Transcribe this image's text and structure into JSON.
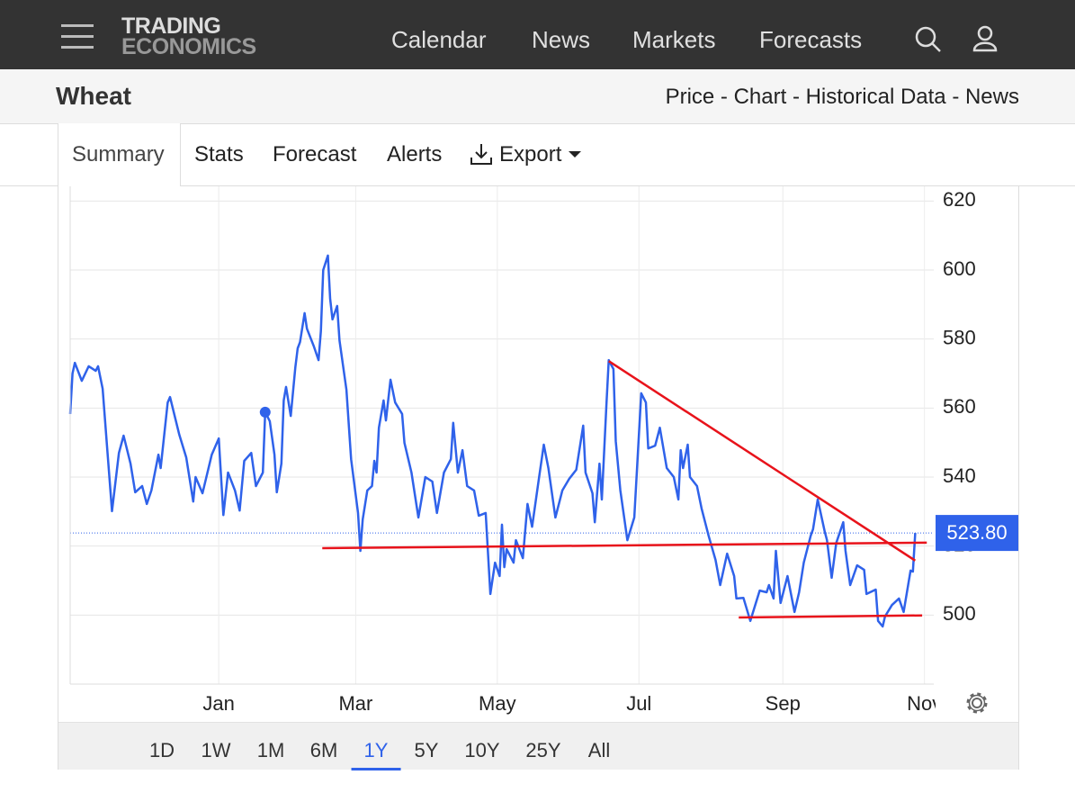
{
  "nav": {
    "logo_line1": "TRADING",
    "logo_line2": "ECONOMICS",
    "items": [
      "Calendar",
      "News",
      "Markets",
      "Forecasts"
    ]
  },
  "header": {
    "title": "Wheat",
    "links": "Price - Chart - Historical Data - News"
  },
  "tabs": [
    "Summary",
    "Stats",
    "Forecast",
    "Alerts",
    "Export"
  ],
  "chart_data": {
    "type": "line",
    "color": "#2f62ea",
    "x": [
      -64,
      -63,
      -62,
      -59,
      -56,
      -53,
      -52,
      -50,
      -48,
      -46,
      -43,
      -41,
      -38,
      -36,
      -33,
      -31,
      -29,
      -26,
      -25,
      -22,
      -21,
      -17,
      -14,
      -11,
      -10,
      -7,
      -3,
      0,
      2,
      4,
      7,
      9,
      11,
      14,
      16,
      19,
      20,
      22,
      24,
      25,
      27,
      28,
      29,
      31,
      33,
      34,
      35,
      37,
      38,
      41,
      43,
      44,
      45,
      47,
      48,
      49,
      51,
      52,
      55,
      57,
      60,
      61,
      62,
      64,
      66,
      67,
      68,
      69,
      71,
      72,
      74,
      76,
      79,
      80,
      83,
      86,
      89,
      92,
      94,
      97,
      100,
      101,
      103,
      105,
      107,
      110,
      112,
      115,
      117,
      119,
      121,
      122,
      123,
      124,
      127,
      128,
      131,
      133,
      135,
      138,
      140,
      142,
      145,
      148,
      151,
      154,
      157,
      158,
      161,
      162,
      164,
      165,
      167,
      168,
      170,
      171,
      173,
      176,
      179,
      182,
      184,
      185,
      188,
      190,
      193,
      196,
      198,
      199,
      200,
      202,
      203,
      206,
      208,
      211,
      214,
      216,
      219,
      222,
      223,
      226,
      229,
      233,
      236,
      237,
      239,
      240,
      242,
      245,
      248,
      250,
      252,
      255,
      256,
      258,
      261,
      262,
      264,
      266,
      269,
      270,
      272,
      275,
      278,
      279,
      283,
      284,
      286,
      287,
      290,
      293,
      295,
      298,
      299,
      300
    ],
    "values": [
      558.3,
      570.0,
      573.1,
      567.9,
      572.1,
      570.8,
      572.1,
      565.6,
      547.8,
      530.1,
      547.0,
      552.0,
      543.9,
      535.6,
      537.4,
      532.2,
      536.1,
      546.5,
      542.6,
      561.6,
      563.2,
      552.3,
      545.7,
      532.9,
      540.0,
      535.3,
      546.5,
      551.2,
      529.0,
      541.3,
      536.1,
      530.3,
      544.7,
      547.0,
      537.4,
      541.3,
      558.8,
      556.2,
      546.5,
      535.6,
      543.9,
      562.2,
      566.1,
      557.7,
      571.8,
      577.3,
      579.1,
      587.5,
      583.0,
      577.8,
      573.9,
      582.3,
      600.0,
      604.2,
      591.7,
      585.7,
      589.6,
      579.6,
      565.3,
      545.2,
      529.6,
      518.6,
      527.7,
      536.1,
      537.4,
      544.7,
      541.3,
      554.3,
      562.2,
      556.4,
      568.2,
      561.6,
      558.3,
      549.9,
      541.3,
      528.3,
      540.0,
      538.7,
      529.6,
      541.3,
      545.2,
      555.7,
      541.3,
      547.8,
      537.4,
      536.1,
      528.8,
      529.6,
      506.1,
      515.2,
      511.3,
      526.2,
      513.9,
      519.1,
      515.2,
      521.7,
      516.5,
      532.2,
      525.6,
      540.0,
      549.4,
      542.6,
      528.3,
      536.1,
      539.5,
      542.1,
      554.9,
      541.3,
      535.3,
      526.9,
      543.9,
      533.5,
      560.9,
      573.9,
      571.3,
      550.4,
      536.1,
      521.7,
      528.3,
      564.3,
      561.6,
      548.3,
      549.1,
      554.3,
      542.6,
      540.0,
      533.5,
      547.8,
      542.6,
      549.4,
      540.0,
      537.4,
      530.9,
      523.0,
      516.0,
      508.7,
      517.8,
      511.3,
      504.8,
      505.0,
      498.3,
      507.1,
      506.6,
      508.7,
      504.8,
      518.6,
      503.5,
      511.3,
      500.9,
      506.6,
      515.2,
      523.0,
      524.9,
      533.5,
      524.3,
      521.7,
      510.8,
      520.9,
      526.9,
      518.6,
      508.7,
      514.4,
      513.1,
      506.1,
      507.4,
      498.3,
      496.7,
      499.6,
      502.9,
      504.8,
      500.9,
      512.9,
      512.6,
      523.8
    ],
    "last_price": 523.8,
    "last_price_label": "523.80",
    "marker": {
      "x": 20,
      "y": 558.8
    },
    "trendlines": [
      {
        "x": [
          44.6,
          305
        ],
        "y": [
          519.4,
          521.0
        ],
        "color": "#e8131b"
      },
      {
        "x": [
          168,
          300
        ],
        "y": [
          573.6,
          515.8
        ],
        "color": "#e8131b"
      },
      {
        "x": [
          224,
          303
        ],
        "y": [
          499.3,
          499.9
        ],
        "color": "#e8131b"
      }
    ],
    "xlim": [
      -64,
      308
    ],
    "ylim": [
      480,
      624
    ],
    "xticks": [
      {
        "value": 0,
        "label": "Jan"
      },
      {
        "value": 59,
        "label": "Mar"
      },
      {
        "value": 120,
        "label": "May"
      },
      {
        "value": 181,
        "label": "Jul"
      },
      {
        "value": 243,
        "label": "Sep"
      },
      {
        "value": 304,
        "label": "Nov"
      }
    ],
    "yticks": [
      500,
      520,
      540,
      560,
      580,
      600,
      620
    ],
    "grid": true
  },
  "ranges": [
    "1D",
    "1W",
    "1M",
    "6M",
    "1Y",
    "5Y",
    "10Y",
    "25Y",
    "All"
  ],
  "active_range_index": 4
}
